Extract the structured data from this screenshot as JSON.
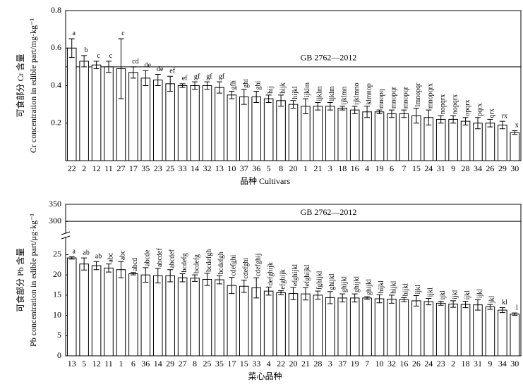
{
  "chart_data": [
    {
      "type": "bar",
      "y_label": [
        "可食部分 Cr 含量",
        "Cr concentration in edible part/mg·kg⁻¹"
      ],
      "x_label": "品种 Cultivars",
      "categories": [
        "22",
        "2",
        "12",
        "11",
        "27",
        "17",
        "35",
        "23",
        "25",
        "33",
        "14",
        "32",
        "13",
        "10",
        "37",
        "36",
        "5",
        "8",
        "20",
        "1",
        "21",
        "3",
        "18",
        "16",
        "4",
        "19",
        "6",
        "7",
        "15",
        "24",
        "31",
        "9",
        "28",
        "34",
        "26",
        "29",
        "30"
      ],
      "values": [
        0.6,
        0.53,
        0.51,
        0.5,
        0.49,
        0.47,
        0.44,
        0.43,
        0.41,
        0.4,
        0.4,
        0.4,
        0.39,
        0.35,
        0.34,
        0.34,
        0.33,
        0.32,
        0.3,
        0.29,
        0.29,
        0.29,
        0.28,
        0.27,
        0.26,
        0.26,
        0.25,
        0.25,
        0.24,
        0.23,
        0.22,
        0.22,
        0.21,
        0.2,
        0.2,
        0.19,
        0.15
      ],
      "errors": [
        0.05,
        0.03,
        0.02,
        0.03,
        0.16,
        0.03,
        0.04,
        0.03,
        0.04,
        0.01,
        0.02,
        0.02,
        0.03,
        0.02,
        0.04,
        0.03,
        0.02,
        0.03,
        0.02,
        0.04,
        0.02,
        0.02,
        0.01,
        0.02,
        0.03,
        0.01,
        0.02,
        0.02,
        0.04,
        0.04,
        0.02,
        0.02,
        0.02,
        0.03,
        0.02,
        0.02,
        0.01
      ],
      "letters": [
        "a",
        "b",
        "c",
        "c",
        "c",
        "cd",
        "de",
        "de",
        "ef",
        "ef",
        "gf",
        "gf",
        "gf",
        "gfh",
        "ghi",
        "ghi",
        "hij",
        "hijk",
        "hijkl",
        "ijklm",
        "ijklm",
        "ijklm",
        "ijklmn",
        "ijklmno",
        "klmnop",
        "mnopq",
        "mnopqr",
        "mnopqr",
        "lmnopqr",
        "mnopqrx",
        "nopqrx",
        "nopqrx",
        "opqrx",
        "pqrx",
        "qrx",
        "rx",
        "x"
      ],
      "reference_line": {
        "value": 0.5,
        "label": "GB 2762—2012"
      },
      "color": "#ffffff",
      "ylim": [
        0,
        0.8
      ],
      "yticks": [
        {
          "value": 0.2,
          "label": "0.2"
        },
        {
          "value": 0.4,
          "label": "0.4"
        },
        {
          "value": 0.6,
          "label": "0.6"
        },
        {
          "value": 0.8,
          "label": "0.8"
        }
      ]
    },
    {
      "type": "bar",
      "y_label": [
        "可食部分 Pb 含量",
        "Pb concentration in edible part/μg·kg⁻¹"
      ],
      "x_label": "菜心品种",
      "categories": [
        "13",
        "5",
        "12",
        "11",
        "1",
        "6",
        "36",
        "14",
        "29",
        "27",
        "8",
        "25",
        "35",
        "17",
        "15",
        "33",
        "4",
        "22",
        "20",
        "21",
        "28",
        "3",
        "37",
        "19",
        "7",
        "10",
        "32",
        "16",
        "26",
        "24",
        "23",
        "2",
        "18",
        "31",
        "9",
        "34",
        "30"
      ],
      "values": [
        24.2,
        22.7,
        22.3,
        21.7,
        21.3,
        20.3,
        20.0,
        19.8,
        19.8,
        19.3,
        19.2,
        18.9,
        18.8,
        17.4,
        17.2,
        16.8,
        16.0,
        15.6,
        15.4,
        15.3,
        15.0,
        14.4,
        14.3,
        14.3,
        14.3,
        14.1,
        14.0,
        13.9,
        13.6,
        13.4,
        13.0,
        12.8,
        12.7,
        12.6,
        12.1,
        11.3,
        10.3
      ],
      "errors": [
        0.3,
        1.5,
        1.0,
        1.0,
        2.0,
        0.3,
        1.8,
        1.8,
        1.5,
        1.0,
        0.8,
        1.5,
        1.0,
        2.0,
        1.5,
        2.5,
        1.0,
        0.5,
        1.5,
        1.5,
        1.0,
        1.5,
        1.0,
        1.0,
        0.3,
        1.0,
        1.0,
        0.5,
        1.3,
        0.8,
        0.5,
        0.8,
        0.8,
        1.3,
        0.6,
        0.6,
        0.3
      ],
      "letters": [
        "a",
        "ab",
        "ab",
        "abc",
        "abc",
        "abcd",
        "abcde",
        "abcdef",
        "abcdef",
        "bcdefg",
        "bcdefg",
        "bcdefgh",
        "bcdefgh",
        "cdefghi",
        "cdefghi",
        "cdefghij",
        "defghijk",
        "efghijk",
        "efghijkl",
        "efghijkl",
        "fghijkl",
        "ghijkl",
        "ghijkl",
        "ghijkl",
        "ghijkl",
        "hijkl",
        "hijkl",
        "hijkl",
        "ijkl",
        "ijkl",
        "ijkl",
        "ijkl",
        "ijkl",
        "ijkl",
        "jkl",
        "kl",
        "l"
      ],
      "reference_line": {
        "value": 300,
        "label": "GB 2762—2012"
      },
      "color": "#ffffff",
      "ylim": [
        0,
        350
      ],
      "axis_break": [
        27,
        290
      ],
      "yticks": [
        0,
        5,
        10,
        15,
        20,
        25,
        300,
        350
      ]
    }
  ]
}
